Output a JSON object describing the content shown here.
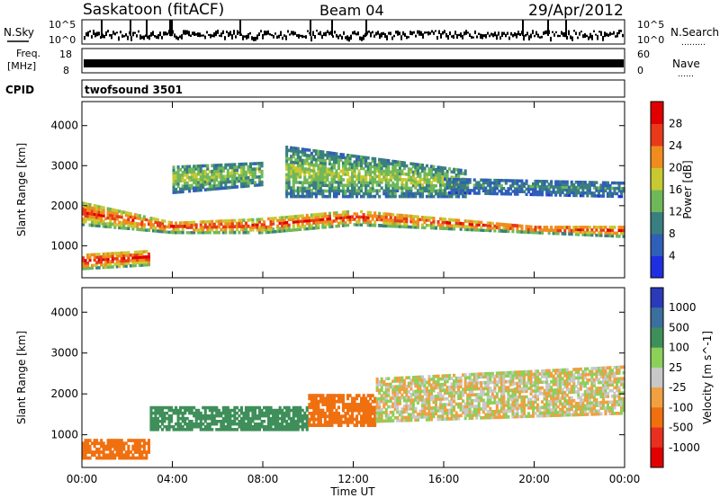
{
  "header": {
    "station": "Saskatoon (fitACF)",
    "beam": "Beam 04",
    "date": "29/Apr/2012"
  },
  "nsky_panel": {
    "left_label": "N.Sky",
    "right_label": "N.Search",
    "right_dots": "………",
    "tick_top_left": "10^5",
    "tick_bottom_left": "10^0",
    "tick_top_right": "10^5",
    "tick_bottom_right": "10^0"
  },
  "freq_panel": {
    "left_label_1": "Freq.",
    "left_label_2": "[MHz]",
    "right_label": "Nave",
    "right_dots": "……",
    "tick_top_left": "18",
    "tick_bottom_left": "8",
    "tick_top_right": "60",
    "tick_bottom_right": "0"
  },
  "cpid_panel": {
    "label": "CPID",
    "mode": "twofsound 3501"
  },
  "chart_data": [
    {
      "type": "heatmap",
      "panel": "power",
      "ylabel": "Slant Range [km]",
      "y_ticks": [
        "1000",
        "2000",
        "3000",
        "4000"
      ],
      "ylim": [
        200,
        4600
      ],
      "x_ticks": [
        "00:00",
        "04:00",
        "08:00",
        "12:00",
        "16:00",
        "20:00",
        "00:00"
      ],
      "xlim_hours": [
        0,
        24
      ],
      "colorbar": {
        "label": "Power [dB]",
        "tick_labels": [
          "4",
          "8",
          "12",
          "16",
          "20",
          "24",
          "28"
        ],
        "colors": [
          "#1f2fe0",
          "#2f5fb8",
          "#3a7f7f",
          "#6fb85a",
          "#c8c832",
          "#f08c1e",
          "#e83a1a",
          "#e00000"
        ]
      },
      "echo_bands": [
        {
          "t_start": 0,
          "t_end": 24,
          "ranges_km": [
            [
              1500,
              2100
            ],
            [
              1300,
              1600
            ],
            [
              1300,
              1700
            ],
            [
              1500,
              1900
            ],
            [
              1400,
              1700
            ],
            [
              1300,
              1500
            ],
            [
              1200,
              1500
            ]
          ],
          "power_db": 24
        },
        {
          "t_start": 0,
          "t_end": 3,
          "ranges_km": [
            [
              400,
              800
            ],
            [
              500,
              900
            ]
          ],
          "power_db": 26
        },
        {
          "t_start": 4,
          "t_end": 8,
          "ranges_km": [
            [
              2300,
              3000
            ],
            [
              2500,
              3100
            ]
          ],
          "power_db": 14
        },
        {
          "t_start": 9,
          "t_end": 17,
          "ranges_km": [
            [
              2200,
              3500
            ],
            [
              2200,
              2900
            ]
          ],
          "power_db": 14
        },
        {
          "t_start": 16,
          "t_end": 24,
          "ranges_km": [
            [
              2300,
              2700
            ],
            [
              2200,
              2600
            ]
          ],
          "power_db": 8
        }
      ]
    },
    {
      "type": "heatmap",
      "panel": "velocity",
      "ylabel": "Slant Range [km]",
      "y_ticks": [
        "1000",
        "2000",
        "3000",
        "4000"
      ],
      "ylim": [
        200,
        4600
      ],
      "x_ticks": [
        "00:00",
        "04:00",
        "08:00",
        "12:00",
        "16:00",
        "20:00",
        "00:00"
      ],
      "xlabel": "Time UT",
      "xlim_hours": [
        0,
        24
      ],
      "colorbar": {
        "label": "Velocity [m s^-1]",
        "tick_labels": [
          "1000",
          "500",
          "100",
          "25",
          "-25",
          "-100",
          "-500",
          "-1000"
        ],
        "colors": [
          "#2a3ab8",
          "#3a6f9f",
          "#3f8f5a",
          "#8cd05a",
          "#c8c8c8",
          "#f0a040",
          "#f07010",
          "#e83020",
          "#e00000"
        ]
      },
      "echo_bands": [
        {
          "t_start": 0,
          "t_end": 3,
          "ranges_km": [
            [
              400,
              900
            ]
          ],
          "velocity_ms": -300
        },
        {
          "t_start": 3,
          "t_end": 10,
          "ranges_km": [
            [
              1100,
              1700
            ]
          ],
          "velocity_ms": 300
        },
        {
          "t_start": 10,
          "t_end": 13,
          "ranges_km": [
            [
              1200,
              2000
            ]
          ],
          "velocity_ms": -200
        },
        {
          "t_start": 13,
          "t_end": 24,
          "ranges_km": [
            [
              1300,
              2400
            ],
            [
              1500,
              2700
            ]
          ],
          "velocity_ms": 0
        }
      ]
    }
  ]
}
